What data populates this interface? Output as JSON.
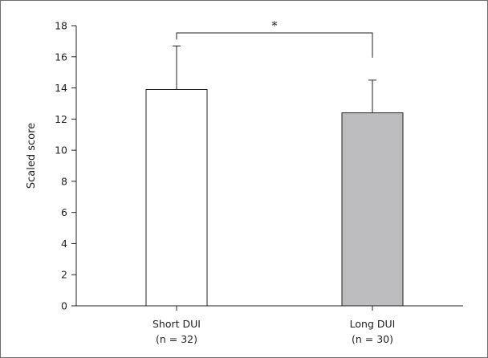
{
  "chart_data": {
    "type": "bar",
    "title": "",
    "xlabel": "",
    "ylabel": "Scaled score",
    "ylim": [
      0,
      18
    ],
    "yticks": [
      "0",
      "2",
      "4",
      "6",
      "8",
      "10",
      "12",
      "14",
      "16",
      "18"
    ],
    "categories": [
      {
        "label": "Short DUI",
        "sublabel": "(n = 32)"
      },
      {
        "label": "Long DUI",
        "sublabel": "(n = 30)"
      }
    ],
    "values": [
      13.9,
      12.4
    ],
    "errors": [
      2.8,
      2.1
    ],
    "bar_colors": [
      "#ffffff",
      "#bdbdbf"
    ],
    "bar_edge_color": "#222222",
    "grid": false,
    "significance": {
      "between": [
        0,
        1
      ],
      "bracket_y": 18,
      "label": "*"
    }
  }
}
